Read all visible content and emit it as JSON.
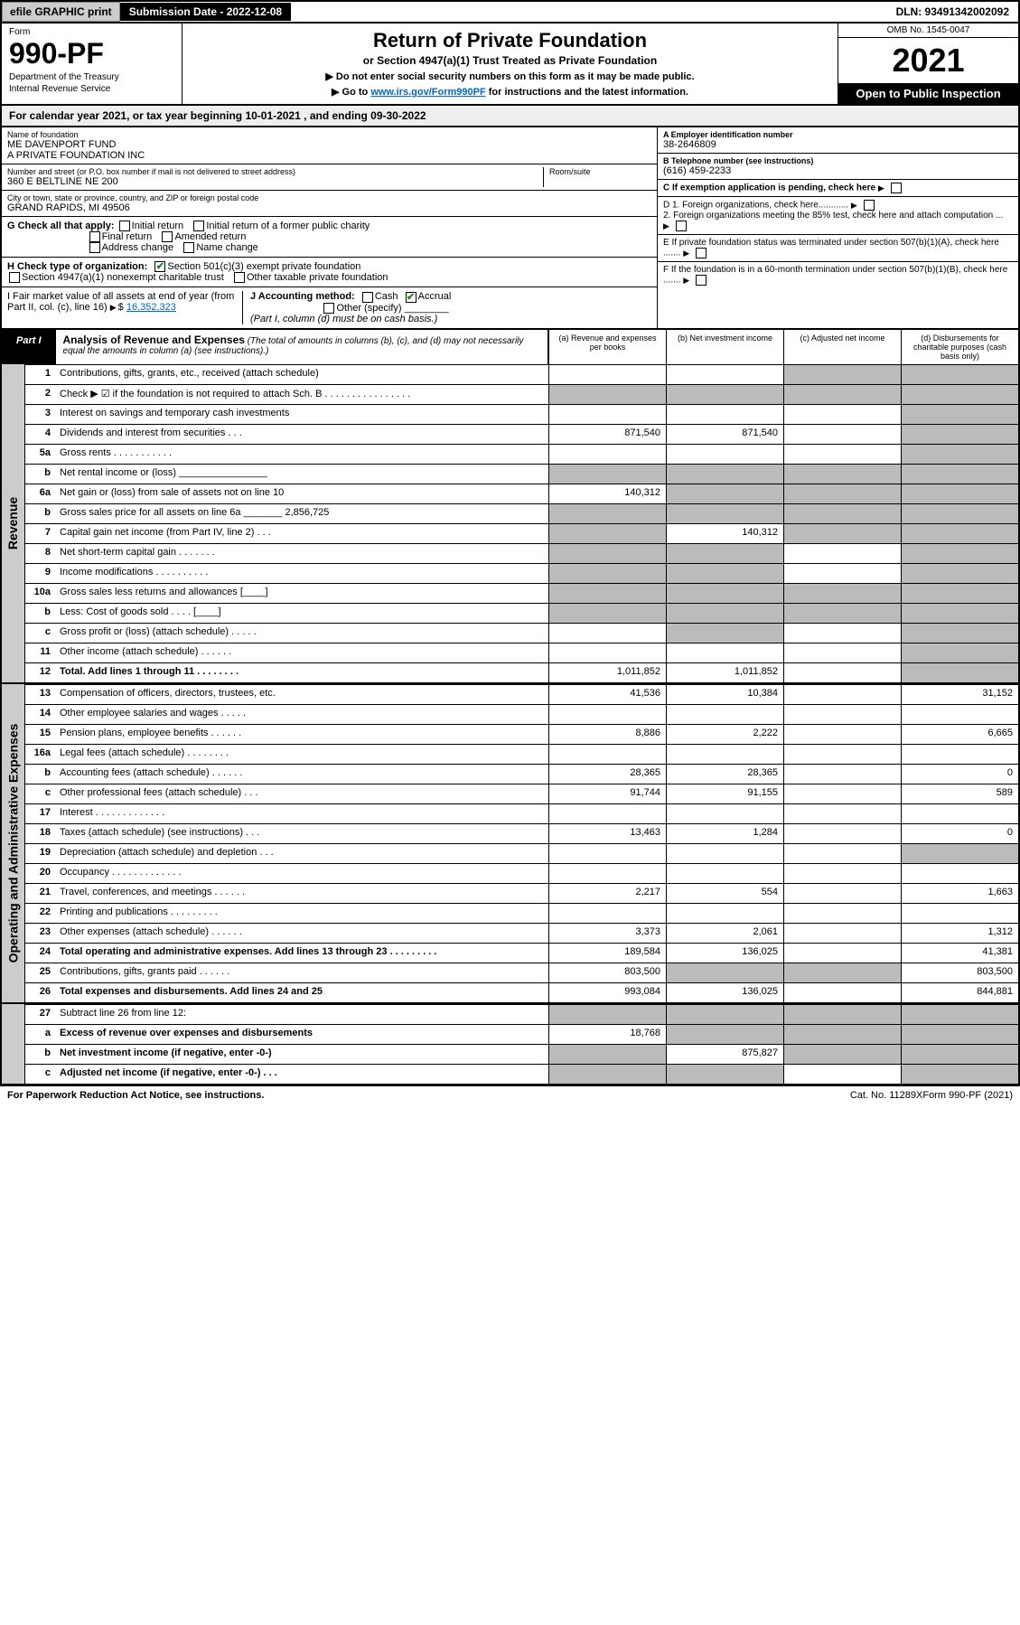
{
  "topbar": {
    "efile": "efile GRAPHIC print",
    "subdate": "Submission Date - 2022-12-08",
    "dln": "DLN: 93491342002092"
  },
  "header": {
    "form": "Form",
    "formnum": "990-PF",
    "dept": "Department of the Treasury",
    "irs": "Internal Revenue Service",
    "title": "Return of Private Foundation",
    "subtitle": "or Section 4947(a)(1) Trust Treated as Private Foundation",
    "note1": "▶ Do not enter social security numbers on this form as it may be made public.",
    "note2_pre": "▶ Go to ",
    "note2_link": "www.irs.gov/Form990PF",
    "note2_post": " for instructions and the latest information.",
    "omb": "OMB No. 1545-0047",
    "year": "2021",
    "open": "Open to Public Inspection"
  },
  "cal": "For calendar year 2021, or tax year beginning 10-01-2021                    , and ending 09-30-2022",
  "id": {
    "name_lbl": "Name of foundation",
    "name": "ME DAVENPORT FUND\nA PRIVATE FOUNDATION INC",
    "addr_lbl": "Number and street (or P.O. box number if mail is not delivered to street address)",
    "addr": "360 E BELTLINE NE 200",
    "room_lbl": "Room/suite",
    "city_lbl": "City or town, state or province, country, and ZIP or foreign postal code",
    "city": "GRAND RAPIDS, MI  49506",
    "ein_lbl": "A Employer identification number",
    "ein": "38-2646809",
    "tel_lbl": "B Telephone number (see instructions)",
    "tel": "(616) 459-2233",
    "c_lbl": "C If exemption application is pending, check here",
    "d1": "D 1. Foreign organizations, check here............",
    "d2": "2. Foreign organizations meeting the 85% test, check here and attach computation ...",
    "e": "E  If private foundation status was terminated under section 507(b)(1)(A), check here .......",
    "f": "F  If the foundation is in a 60-month termination under section 507(b)(1)(B), check here .......",
    "g_lbl": "G Check all that apply:",
    "g_opts": [
      "Initial return",
      "Initial return of a former public charity",
      "Final return",
      "Amended return",
      "Address change",
      "Name change"
    ],
    "h_lbl": "H Check type of organization:",
    "h_opts": [
      "Section 501(c)(3) exempt private foundation",
      "Section 4947(a)(1) nonexempt charitable trust",
      "Other taxable private foundation"
    ],
    "i_lbl": "I Fair market value of all assets at end of year (from Part II, col. (c), line 16)",
    "i_val": "16,352,323",
    "j_lbl": "J Accounting method:",
    "j_opts": [
      "Cash",
      "Accrual",
      "Other (specify)"
    ],
    "j_note": "(Part I, column (d) must be on cash basis.)"
  },
  "part1": {
    "tag": "Part I",
    "title": "Analysis of Revenue and Expenses",
    "desc": " (The total of amounts in columns (b), (c), and (d) may not necessarily equal the amounts in column (a) (see instructions).)",
    "cols": [
      "(a)  Revenue and expenses per books",
      "(b)  Net investment income",
      "(c)  Adjusted net income",
      "(d)  Disbursements for charitable purposes (cash basis only)"
    ]
  },
  "sides": {
    "rev": "Revenue",
    "exp": "Operating and Administrative Expenses"
  },
  "lines": [
    {
      "n": "1",
      "t": "Contributions, gifts, grants, etc., received (attach schedule)",
      "a": "",
      "b": "",
      "c": "g",
      "d": "g"
    },
    {
      "n": "2",
      "t": "Check ▶ ☑ if the foundation is not required to attach Sch. B    .  .  .  .  .  .  .  .  .  .  .  .  .  .  .  .",
      "a": "g",
      "b": "g",
      "c": "g",
      "d": "g"
    },
    {
      "n": "3",
      "t": "Interest on savings and temporary cash investments",
      "a": "",
      "b": "",
      "c": "",
      "d": "g"
    },
    {
      "n": "4",
      "t": "Dividends and interest from securities    .   .   .",
      "a": "871,540",
      "b": "871,540",
      "c": "",
      "d": "g"
    },
    {
      "n": "5a",
      "t": "Gross rents    .   .   .   .   .   .   .   .   .   .   .",
      "a": "",
      "b": "",
      "c": "",
      "d": "g"
    },
    {
      "n": "b",
      "t": "Net rental income or (loss)   ________________",
      "a": "g",
      "b": "g",
      "c": "g",
      "d": "g"
    },
    {
      "n": "6a",
      "t": "Net gain or (loss) from sale of assets not on line 10",
      "a": "140,312",
      "b": "g",
      "c": "g",
      "d": "g"
    },
    {
      "n": "b",
      "t": "Gross sales price for all assets on line 6a _______ 2,856,725",
      "a": "g",
      "b": "g",
      "c": "g",
      "d": "g"
    },
    {
      "n": "7",
      "t": "Capital gain net income (from Part IV, line 2)   .   .   .",
      "a": "g",
      "b": "140,312",
      "c": "g",
      "d": "g"
    },
    {
      "n": "8",
      "t": "Net short-term capital gain   .   .   .   .   .   .   .",
      "a": "g",
      "b": "g",
      "c": "",
      "d": "g"
    },
    {
      "n": "9",
      "t": "Income modifications  .   .   .   .   .   .   .   .   .   .",
      "a": "g",
      "b": "g",
      "c": "",
      "d": "g"
    },
    {
      "n": "10a",
      "t": "Gross sales less returns and allowances  [____]",
      "a": "g",
      "b": "g",
      "c": "g",
      "d": "g"
    },
    {
      "n": "b",
      "t": "Less: Cost of goods sold    .   .   .   .   [____]",
      "a": "g",
      "b": "g",
      "c": "g",
      "d": "g"
    },
    {
      "n": "c",
      "t": "Gross profit or (loss) (attach schedule)    .   .   .   .   .",
      "a": "",
      "b": "g",
      "c": "",
      "d": "g"
    },
    {
      "n": "11",
      "t": "Other income (attach schedule)    .   .   .   .   .   .",
      "a": "",
      "b": "",
      "c": "",
      "d": "g"
    },
    {
      "n": "12",
      "t": "Total. Add lines 1 through 11   .   .   .   .   .   .   .   .",
      "bold": true,
      "a": "1,011,852",
      "b": "1,011,852",
      "c": "",
      "d": "g"
    }
  ],
  "exps": [
    {
      "n": "13",
      "t": "Compensation of officers, directors, trustees, etc.",
      "a": "41,536",
      "b": "10,384",
      "c": "",
      "d": "31,152"
    },
    {
      "n": "14",
      "t": "Other employee salaries and wages    .   .   .   .   .",
      "a": "",
      "b": "",
      "c": "",
      "d": ""
    },
    {
      "n": "15",
      "t": "Pension plans, employee benefits  .   .   .   .   .   .",
      "a": "8,886",
      "b": "2,222",
      "c": "",
      "d": "6,665"
    },
    {
      "n": "16a",
      "t": "Legal fees (attach schedule)  .   .   .   .   .   .   .   .",
      "a": "",
      "b": "",
      "c": "",
      "d": ""
    },
    {
      "n": "b",
      "t": "Accounting fees (attach schedule)  .   .   .   .   .   .",
      "a": "28,365",
      "b": "28,365",
      "c": "",
      "d": "0"
    },
    {
      "n": "c",
      "t": "Other professional fees (attach schedule)    .   .   .",
      "a": "91,744",
      "b": "91,155",
      "c": "",
      "d": "589"
    },
    {
      "n": "17",
      "t": "Interest  .   .   .   .   .   .   .   .   .   .   .   .   .",
      "a": "",
      "b": "",
      "c": "",
      "d": ""
    },
    {
      "n": "18",
      "t": "Taxes (attach schedule) (see instructions)    .   .   .",
      "a": "13,463",
      "b": "1,284",
      "c": "",
      "d": "0"
    },
    {
      "n": "19",
      "t": "Depreciation (attach schedule) and depletion    .   .   .",
      "a": "",
      "b": "",
      "c": "",
      "d": "g"
    },
    {
      "n": "20",
      "t": "Occupancy  .   .   .   .   .   .   .   .   .   .   .   .   .",
      "a": "",
      "b": "",
      "c": "",
      "d": ""
    },
    {
      "n": "21",
      "t": "Travel, conferences, and meetings  .   .   .   .   .   .",
      "a": "2,217",
      "b": "554",
      "c": "",
      "d": "1,663"
    },
    {
      "n": "22",
      "t": "Printing and publications  .   .   .   .   .   .   .   .   .",
      "a": "",
      "b": "",
      "c": "",
      "d": ""
    },
    {
      "n": "23",
      "t": "Other expenses (attach schedule)  .   .   .   .   .   .",
      "a": "3,373",
      "b": "2,061",
      "c": "",
      "d": "1,312"
    },
    {
      "n": "24",
      "t": "Total operating and administrative expenses. Add lines 13 through 23   .   .   .   .   .   .   .   .   .",
      "bold": true,
      "a": "189,584",
      "b": "136,025",
      "c": "",
      "d": "41,381"
    },
    {
      "n": "25",
      "t": "Contributions, gifts, grants paid    .   .   .   .   .   .",
      "a": "803,500",
      "b": "g",
      "c": "g",
      "d": "803,500"
    },
    {
      "n": "26",
      "t": "Total expenses and disbursements. Add lines 24 and 25",
      "bold": true,
      "a": "993,084",
      "b": "136,025",
      "c": "",
      "d": "844,881"
    }
  ],
  "bottom": [
    {
      "n": "27",
      "t": "Subtract line 26 from line 12:",
      "a": "g",
      "b": "g",
      "c": "g",
      "d": "g"
    },
    {
      "n": "a",
      "t": "Excess of revenue over expenses and disbursements",
      "bold": true,
      "a": "18,768",
      "b": "g",
      "c": "g",
      "d": "g"
    },
    {
      "n": "b",
      "t": "Net investment income (if negative, enter -0-)",
      "bold": true,
      "a": "g",
      "b": "875,827",
      "c": "g",
      "d": "g"
    },
    {
      "n": "c",
      "t": "Adjusted net income (if negative, enter -0-)   .   .   .",
      "bold": true,
      "a": "g",
      "b": "g",
      "c": "",
      "d": "g"
    }
  ],
  "footer": {
    "l": "For Paperwork Reduction Act Notice, see instructions.",
    "m": "Cat. No. 11289X",
    "r": "Form 990-PF (2021)"
  }
}
